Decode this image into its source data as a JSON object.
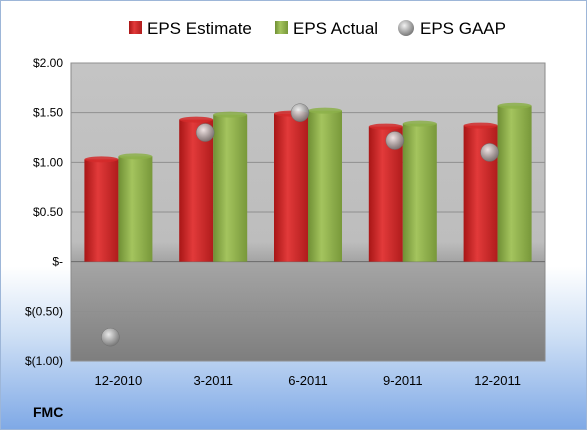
{
  "company": "FMC",
  "colors": {
    "estimate": "#d42a2a",
    "actual": "#8cb04a",
    "gaap": "#a8a8a8"
  },
  "chart_data": {
    "type": "bar",
    "categories": [
      "12-2010",
      "3-2011",
      "6-2011",
      "9-2011",
      "12-2011"
    ],
    "series": [
      {
        "name": "EPS Estimate",
        "kind": "bar",
        "values": [
          1.03,
          1.43,
          1.49,
          1.36,
          1.37
        ]
      },
      {
        "name": "EPS Actual",
        "kind": "bar",
        "values": [
          1.06,
          1.48,
          1.52,
          1.39,
          1.57
        ]
      },
      {
        "name": "EPS GAAP",
        "kind": "scatter",
        "values": [
          -0.76,
          1.3,
          1.5,
          1.22,
          1.1
        ]
      }
    ],
    "ylim": [
      -1.0,
      2.0
    ],
    "yticks": [
      2.0,
      1.5,
      1.0,
      0.5,
      0,
      -0.5,
      -1.0
    ],
    "ytick_labels": [
      "$2.00",
      "$1.50",
      "$1.00",
      "$0.50",
      "$-",
      "$(0.50)",
      "$(1.00)"
    ],
    "legend_position": "top",
    "grid": true
  }
}
